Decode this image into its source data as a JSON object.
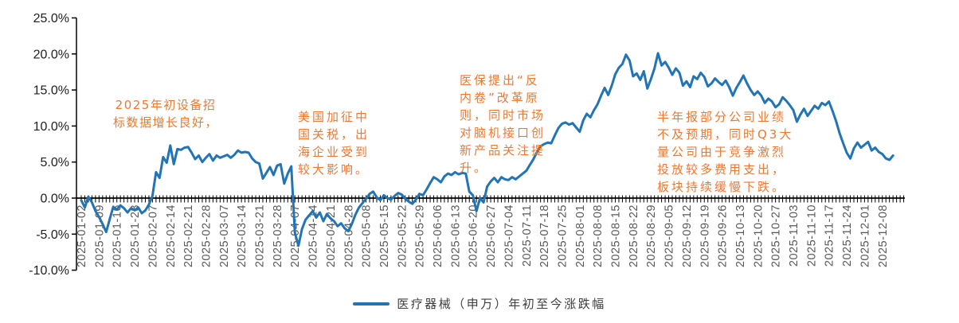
{
  "chart_data": {
    "type": "line",
    "title": "",
    "grid": "off",
    "background": "#ffffff",
    "y_axis": {
      "min": -10,
      "max": 25,
      "step": 5,
      "unit": "%",
      "tick_labels": [
        "25.0%",
        "20.0%",
        "15.0%",
        "10.0%",
        "5.0%",
        "0.0%",
        "-5.0%",
        "-10.0%"
      ]
    },
    "x_tick_labels": [
      "2025-01-02",
      "2025-01-09",
      "2025-01-16",
      "2025-01-23",
      "2025-02-07",
      "2025-02-14",
      "2025-02-21",
      "2025-02-28",
      "2025-03-07",
      "2025-03-14",
      "2025-03-21",
      "2025-03-28",
      "2025-04-07",
      "2025-04-14",
      "2025-04-21",
      "2025-04-28",
      "2025-05-08",
      "2025-05-15",
      "2025-05-22",
      "2025-05-29",
      "2025-06-06",
      "2025-06-13",
      "2025-06-20",
      "2025-06-27",
      "2025-07-04",
      "2025-07-11",
      "2025-07-18",
      "2025-07-25",
      "2025-08-01",
      "2025-08-08",
      "2025-08-15",
      "2025-08-22",
      "2025-08-29",
      "2025-09-05",
      "2025-09-12",
      "2025-09-19",
      "2025-09-26",
      "2025-10-13",
      "2025-10-20",
      "2025-10-27",
      "2025-11-03",
      "2025-11-10",
      "2025-11-17",
      "2025-11-24",
      "2025-12-01",
      "2025-12-08"
    ],
    "x_tick_label_every_n_points": 5,
    "legend": {
      "position": "bottom-center",
      "entries": [
        {
          "label": "医疗器械（申万）年初至今涨跌幅",
          "color": "#2274B5"
        }
      ]
    },
    "annotation_color": "#E87A33",
    "annotations": [
      {
        "text": "2025年初设备招\n标数据增长良好，"
      },
      {
        "text": "美国加征中\n国关税，出\n海企业受到\n较大影响。"
      },
      {
        "text": "医保提出“反\n内卷”改革原\n则，同时市场\n对脑机接口创\n新产品关注提\n升。"
      },
      {
        "text": "半年报部分公司业绩\n不及预期，同时Q3大\n量公司由于竞争激烈\n投放较多费用支出，\n板块持续缓慢下跌。"
      }
    ],
    "series": [
      {
        "name": "医疗器械（申万）年初至今涨跌幅",
        "color": "#2274B5",
        "unit": "%",
        "dates": [
          "2025-01-02",
          "2025-01-03",
          "2025-01-06",
          "2025-01-07",
          "2025-01-08",
          "2025-01-09",
          "2025-01-10",
          "2025-01-13",
          "2025-01-14",
          "2025-01-15",
          "2025-01-16",
          "2025-01-17",
          "2025-01-20",
          "2025-01-21",
          "2025-01-22",
          "2025-01-23",
          "2025-01-24",
          "2025-01-27",
          "2025-02-05",
          "2025-02-06",
          "2025-02-07",
          "2025-02-10",
          "2025-02-11",
          "2025-02-12",
          "2025-02-13",
          "2025-02-14",
          "2025-02-17",
          "2025-02-18",
          "2025-02-19",
          "2025-02-20",
          "2025-02-21",
          "2025-02-24",
          "2025-02-25",
          "2025-02-26",
          "2025-02-27",
          "2025-02-28",
          "2025-03-03",
          "2025-03-04",
          "2025-03-05",
          "2025-03-06",
          "2025-03-07",
          "2025-03-10",
          "2025-03-11",
          "2025-03-12",
          "2025-03-13",
          "2025-03-14",
          "2025-03-17",
          "2025-03-18",
          "2025-03-19",
          "2025-03-20",
          "2025-03-21",
          "2025-03-24",
          "2025-03-25",
          "2025-03-26",
          "2025-03-27",
          "2025-03-28",
          "2025-03-31",
          "2025-04-01",
          "2025-04-02",
          "2025-04-03",
          "2025-04-07",
          "2025-04-08",
          "2025-04-09",
          "2025-04-10",
          "2025-04-11",
          "2025-04-14",
          "2025-04-15",
          "2025-04-16",
          "2025-04-17",
          "2025-04-18",
          "2025-04-21",
          "2025-04-22",
          "2025-04-23",
          "2025-04-24",
          "2025-04-25",
          "2025-04-28",
          "2025-04-29",
          "2025-04-30",
          "2025-05-06",
          "2025-05-07",
          "2025-05-08",
          "2025-05-09",
          "2025-05-12",
          "2025-05-13",
          "2025-05-14",
          "2025-05-15",
          "2025-05-16",
          "2025-05-19",
          "2025-05-20",
          "2025-05-21",
          "2025-05-22",
          "2025-05-23",
          "2025-05-26",
          "2025-05-27",
          "2025-05-28",
          "2025-05-29",
          "2025-05-30",
          "2025-06-03",
          "2025-06-04",
          "2025-06-05",
          "2025-06-06",
          "2025-06-09",
          "2025-06-10",
          "2025-06-11",
          "2025-06-12",
          "2025-06-13",
          "2025-06-16",
          "2025-06-17",
          "2025-06-18",
          "2025-06-19",
          "2025-06-20",
          "2025-06-23",
          "2025-06-24",
          "2025-06-25",
          "2025-06-26",
          "2025-06-27",
          "2025-06-30",
          "2025-07-01",
          "2025-07-02",
          "2025-07-03",
          "2025-07-04",
          "2025-07-07",
          "2025-07-08",
          "2025-07-09",
          "2025-07-10",
          "2025-07-11",
          "2025-07-14",
          "2025-07-15",
          "2025-07-16",
          "2025-07-17",
          "2025-07-18",
          "2025-07-21",
          "2025-07-22",
          "2025-07-23",
          "2025-07-24",
          "2025-07-25",
          "2025-07-28",
          "2025-07-29",
          "2025-07-30",
          "2025-07-31",
          "2025-08-01",
          "2025-08-04",
          "2025-08-05",
          "2025-08-06",
          "2025-08-07",
          "2025-08-08",
          "2025-08-11",
          "2025-08-12",
          "2025-08-13",
          "2025-08-14",
          "2025-08-15",
          "2025-08-18",
          "2025-08-19",
          "2025-08-20",
          "2025-08-21",
          "2025-08-22",
          "2025-08-25",
          "2025-08-26",
          "2025-08-27",
          "2025-08-28",
          "2025-08-29",
          "2025-09-01",
          "2025-09-02",
          "2025-09-03",
          "2025-09-04",
          "2025-09-05",
          "2025-09-08",
          "2025-09-09",
          "2025-09-10",
          "2025-09-11",
          "2025-09-12",
          "2025-09-15",
          "2025-09-16",
          "2025-09-17",
          "2025-09-18",
          "2025-09-19",
          "2025-09-22",
          "2025-09-23",
          "2025-09-24",
          "2025-09-25",
          "2025-09-26",
          "2025-09-29",
          "2025-09-30",
          "2025-10-09",
          "2025-10-10",
          "2025-10-13",
          "2025-10-14",
          "2025-10-15",
          "2025-10-16",
          "2025-10-17",
          "2025-10-20",
          "2025-10-21",
          "2025-10-22",
          "2025-10-23",
          "2025-10-24",
          "2025-10-27",
          "2025-10-28",
          "2025-10-29",
          "2025-10-30",
          "2025-10-31",
          "2025-11-03",
          "2025-11-04",
          "2025-11-05",
          "2025-11-06",
          "2025-11-07",
          "2025-11-10",
          "2025-11-11",
          "2025-11-12",
          "2025-11-13",
          "2025-11-14",
          "2025-11-17",
          "2025-11-18",
          "2025-11-19",
          "2025-11-20",
          "2025-11-21",
          "2025-11-24",
          "2025-11-25",
          "2025-11-26",
          "2025-11-27",
          "2025-11-28",
          "2025-12-01",
          "2025-12-02",
          "2025-12-03",
          "2025-12-04",
          "2025-12-05",
          "2025-12-08",
          "2025-12-09",
          "2025-12-10",
          "2025-12-11"
        ],
        "values": [
          -0.3,
          -1.3,
          0.2,
          -0.6,
          -1.8,
          -2.6,
          -3.6,
          -4.7,
          -2.9,
          -1.2,
          -1.6,
          -1.0,
          -1.4,
          -2.0,
          -1.4,
          -1.7,
          -1.3,
          -2.1,
          -1.7,
          -0.9,
          0.3,
          3.6,
          2.8,
          5.7,
          4.9,
          7.3,
          4.7,
          6.8,
          6.7,
          7.0,
          7.1,
          6.3,
          5.4,
          5.9,
          5.0,
          5.6,
          6.1,
          5.2,
          5.9,
          5.6,
          5.8,
          6.0,
          5.6,
          6.0,
          6.6,
          6.3,
          6.4,
          6.3,
          5.5,
          5.0,
          4.8,
          2.7,
          3.5,
          4.3,
          3.2,
          4.5,
          4.7,
          2.0,
          3.4,
          4.4,
          -4.8,
          -6.6,
          -4.3,
          -3.0,
          -2.4,
          -1.8,
          -2.7,
          -2.0,
          -3.2,
          -2.2,
          -2.8,
          -3.2,
          -3.9,
          -3.5,
          -4.2,
          -4.6,
          -3.6,
          -2.3,
          -1.3,
          -0.7,
          -0.1,
          0.6,
          0.9,
          0.1,
          -0.3,
          0.4,
          0.0,
          -0.2,
          0.3,
          0.7,
          0.5,
          -0.1,
          -0.5,
          -0.8,
          -0.2,
          0.6,
          0.4,
          1.2,
          2.1,
          2.9,
          2.6,
          2.2,
          3.0,
          3.4,
          3.2,
          3.6,
          3.3,
          3.5,
          3.4,
          0.9,
          0.4,
          -1.8,
          0.0,
          -0.6,
          1.6,
          2.3,
          2.8,
          2.2,
          2.9,
          2.6,
          2.5,
          2.9,
          2.6,
          3.0,
          3.4,
          3.8,
          4.6,
          5.4,
          6.4,
          7.2,
          7.5,
          7.7,
          7.6,
          8.7,
          9.7,
          10.3,
          10.5,
          10.2,
          10.4,
          9.8,
          9.2,
          10.8,
          11.7,
          11.2,
          12.2,
          13.0,
          14.2,
          15.3,
          14.3,
          15.6,
          17.2,
          18.1,
          18.6,
          19.9,
          19.1,
          16.9,
          17.3,
          16.4,
          17.6,
          15.2,
          16.5,
          18.0,
          20.1,
          18.4,
          18.9,
          18.1,
          17.1,
          18.0,
          17.4,
          15.6,
          16.2,
          15.4,
          16.9,
          16.5,
          17.4,
          16.8,
          15.5,
          15.9,
          16.6,
          16.1,
          15.7,
          16.3,
          15.4,
          14.2,
          15.3,
          16.1,
          17.0,
          15.9,
          15.0,
          14.3,
          14.8,
          14.2,
          13.2,
          13.8,
          13.4,
          12.6,
          13.0,
          14.0,
          13.5,
          12.9,
          12.2,
          10.6,
          11.6,
          12.4,
          11.4,
          12.1,
          12.8,
          12.4,
          13.2,
          12.9,
          13.4,
          12.1,
          10.7,
          9.0,
          7.6,
          6.3,
          5.5,
          6.9,
          7.7,
          7.0,
          7.4,
          7.8,
          6.6,
          7.0,
          6.4,
          6.1,
          5.5,
          5.3,
          5.9
        ]
      }
    ]
  }
}
